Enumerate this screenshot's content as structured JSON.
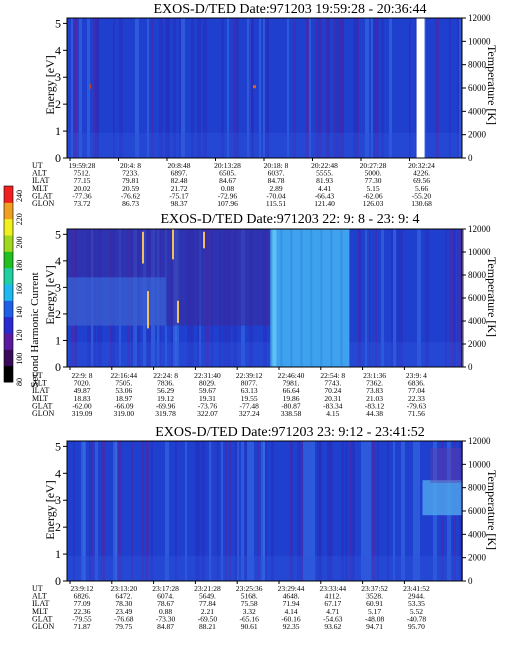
{
  "colors": {
    "background_blue": "#1f3fcf",
    "stripe_dark": "#2a2ab8",
    "stripe_purple": "#5a22a0",
    "stripe_light": "#3d7be8",
    "bright_band": "#3fa2ee",
    "gap": "#ffffff"
  },
  "colorbar": {
    "label": "Second Harmonic Current",
    "ticks": [
      "80",
      "100",
      "120",
      "140",
      "160",
      "180",
      "200",
      "220",
      "240"
    ],
    "colors": [
      "#000000",
      "#3a0a5a",
      "#5a1aa0",
      "#2a2ad0",
      "#1f5fe8",
      "#20b8f0",
      "#20d0a0",
      "#20c020",
      "#a0d820",
      "#f0f020",
      "#f0a020",
      "#f02020"
    ]
  },
  "panels": [
    {
      "title": "EXOS-D/TED   Date:971203  19:59:28 - 20:36:44",
      "y_label": "Energy [eV]",
      "y2_label": "Temperature [K]",
      "y_ticks": [
        "0",
        "1",
        "2",
        "3",
        "4",
        "5"
      ],
      "y2_ticks": [
        "0",
        "2000",
        "4000",
        "6000",
        "8000",
        "10000",
        "12000"
      ],
      "row_labels": [
        "UT",
        "ALT",
        "ILAT",
        "MLT",
        "GLAT",
        "GLON"
      ],
      "columns": [
        [
          "19:59:28",
          "7512.",
          "77.15",
          "20.02",
          "-77.36",
          "73.72"
        ],
        [
          "20:4: 8",
          "7233.",
          "79.81",
          "20.59",
          "-76.62",
          "86.73"
        ],
        [
          "20:8:48",
          "6897.",
          "82.48",
          "21.72",
          "-75.17",
          "98.37"
        ],
        [
          "20:13:28",
          "6505.",
          "84.67",
          "0.08",
          "-72.96",
          "107.96"
        ],
        [
          "20:18: 8",
          "6037.",
          "84.78",
          "2.89",
          "-70.04",
          "115.51"
        ],
        [
          "20:22:48",
          "5555.",
          "81.93",
          "4.41",
          "-66.43",
          "121.40"
        ],
        [
          "20:27:28",
          "5000.",
          "77.30",
          "5.15",
          "-62.06",
          "126.03"
        ],
        [
          "20:32:24",
          "4226.",
          "69.56",
          "5.66",
          "-55.20",
          "130.68"
        ]
      ]
    },
    {
      "title": "EXOS-D/TED   Date:971203  22: 9: 8 - 23: 9: 4",
      "y_label": "Energy [eV]",
      "y2_label": "Temperature [K]",
      "y_ticks": [
        "0",
        "1",
        "2",
        "3",
        "4",
        "5"
      ],
      "y2_ticks": [
        "0",
        "2000",
        "4000",
        "6000",
        "8000",
        "10000",
        "12000"
      ],
      "row_labels": [
        "UT",
        "ALT",
        "ILAT",
        "MLT",
        "GLAT",
        "GLON"
      ],
      "columns": [
        [
          "22:9: 8",
          "7020.",
          "49.87",
          "18.83",
          "-62.00",
          "319.09"
        ],
        [
          "22:16:44",
          "7505.",
          "53.06",
          "18.97",
          "-66.09",
          "319.00"
        ],
        [
          "22:24: 8",
          "7836.",
          "56.29",
          "19.12",
          "-69.96",
          "319.78"
        ],
        [
          "22:31:40",
          "8029.",
          "59.67",
          "19.31",
          "-73.76",
          "322.07"
        ],
        [
          "22:39:12",
          "8077.",
          "63.13",
          "19.55",
          "-77.48",
          "327.24"
        ],
        [
          "22:46:40",
          "7981.",
          "66.64",
          "19.86",
          "-80.87",
          "338.58"
        ],
        [
          "22:54: 8",
          "7743.",
          "70.24",
          "20.31",
          "-83.34",
          "4.15"
        ],
        [
          "23:1:36",
          "7362.",
          "73.83",
          "21.03",
          "-83.12",
          "44.38"
        ],
        [
          "23:9: 4",
          "6836.",
          "77.04",
          "22.33",
          "-79.63",
          "71.56"
        ]
      ]
    },
    {
      "title": "EXOS-D/TED   Date:971203  23: 9:12 - 23:41:52",
      "y_label": "Energy [eV]",
      "y2_label": "Temperature [K]",
      "y_ticks": [
        "0",
        "1",
        "2",
        "3",
        "4",
        "5"
      ],
      "y2_ticks": [
        "0",
        "2000",
        "4000",
        "6000",
        "8000",
        "10000",
        "12000"
      ],
      "row_labels": [
        "UT",
        "ALT",
        "ILAT",
        "MLT",
        "GLAT",
        "GLON"
      ],
      "columns": [
        [
          "23:9:12",
          "6826.",
          "77.09",
          "22.36",
          "-79.55",
          "71.87"
        ],
        [
          "23:13:20",
          "6472.",
          "78.30",
          "23.49",
          "-76.68",
          "79.75"
        ],
        [
          "23:17:28",
          "6074.",
          "78.67",
          "0.88",
          "-73.30",
          "84.87"
        ],
        [
          "23:21:28",
          "5649.",
          "77.84",
          "2.21",
          "-69.50",
          "88.21"
        ],
        [
          "23:25:36",
          "5168.",
          "75.58",
          "3.32",
          "-65.16",
          "90.61"
        ],
        [
          "23:29:44",
          "4648.",
          "71.94",
          "4.14",
          "-60.16",
          "92.35"
        ],
        [
          "23:33:44",
          "4112.",
          "67.17",
          "4.71",
          "-54.63",
          "93.62"
        ],
        [
          "23:37:52",
          "3528.",
          "60.91",
          "5.17",
          "-48.08",
          "94.71"
        ],
        [
          "23:41:52",
          "2944.",
          "53.35",
          "5.52",
          "-40.78",
          "95.70"
        ]
      ]
    }
  ],
  "chart_data": [
    {
      "type": "heatmap",
      "title": "EXOS-D/TED   Date:971203  19:59:28 - 20:36:44",
      "ylabel": "Energy [eV]",
      "y2label": "Temperature [K]",
      "ylim": [
        0,
        5
      ],
      "y2lim": [
        0,
        12000
      ],
      "x_ticks": [
        "19:59:28",
        "20:4: 8",
        "20:8:48",
        "20:13:28",
        "20:18: 8",
        "20:22:48",
        "20:27:28",
        "20:32:24"
      ],
      "colorbar": {
        "label": "Second Harmonic Current",
        "range": [
          80,
          240
        ]
      },
      "data_gap": "near 20:33"
    },
    {
      "type": "heatmap",
      "title": "EXOS-D/TED   Date:971203  22: 9: 8 - 23: 9: 4",
      "ylabel": "Energy [eV]",
      "y2label": "Temperature [K]",
      "ylim": [
        0,
        5
      ],
      "y2lim": [
        0,
        12000
      ],
      "x_ticks": [
        "22:9: 8",
        "22:16:44",
        "22:24: 8",
        "22:31:40",
        "22:39:12",
        "22:46:40",
        "22:54: 8",
        "23:1:36",
        "23:9: 4"
      ],
      "colorbar": {
        "label": "Second Harmonic Current",
        "range": [
          80,
          240
        ]
      },
      "enhanced_band": "22:39:12 - 22:46:40"
    },
    {
      "type": "heatmap",
      "title": "EXOS-D/TED   Date:971203  23: 9:12 - 23:41:52",
      "ylabel": "Energy [eV]",
      "y2label": "Temperature [K]",
      "ylim": [
        0,
        5
      ],
      "y2lim": [
        0,
        12000
      ],
      "x_ticks": [
        "23:9:12",
        "23:13:20",
        "23:17:28",
        "23:21:28",
        "23:25:36",
        "23:29:44",
        "23:33:44",
        "23:37:52",
        "23:41:52"
      ],
      "colorbar": {
        "label": "Second Harmonic Current",
        "range": [
          80,
          240
        ]
      }
    }
  ]
}
